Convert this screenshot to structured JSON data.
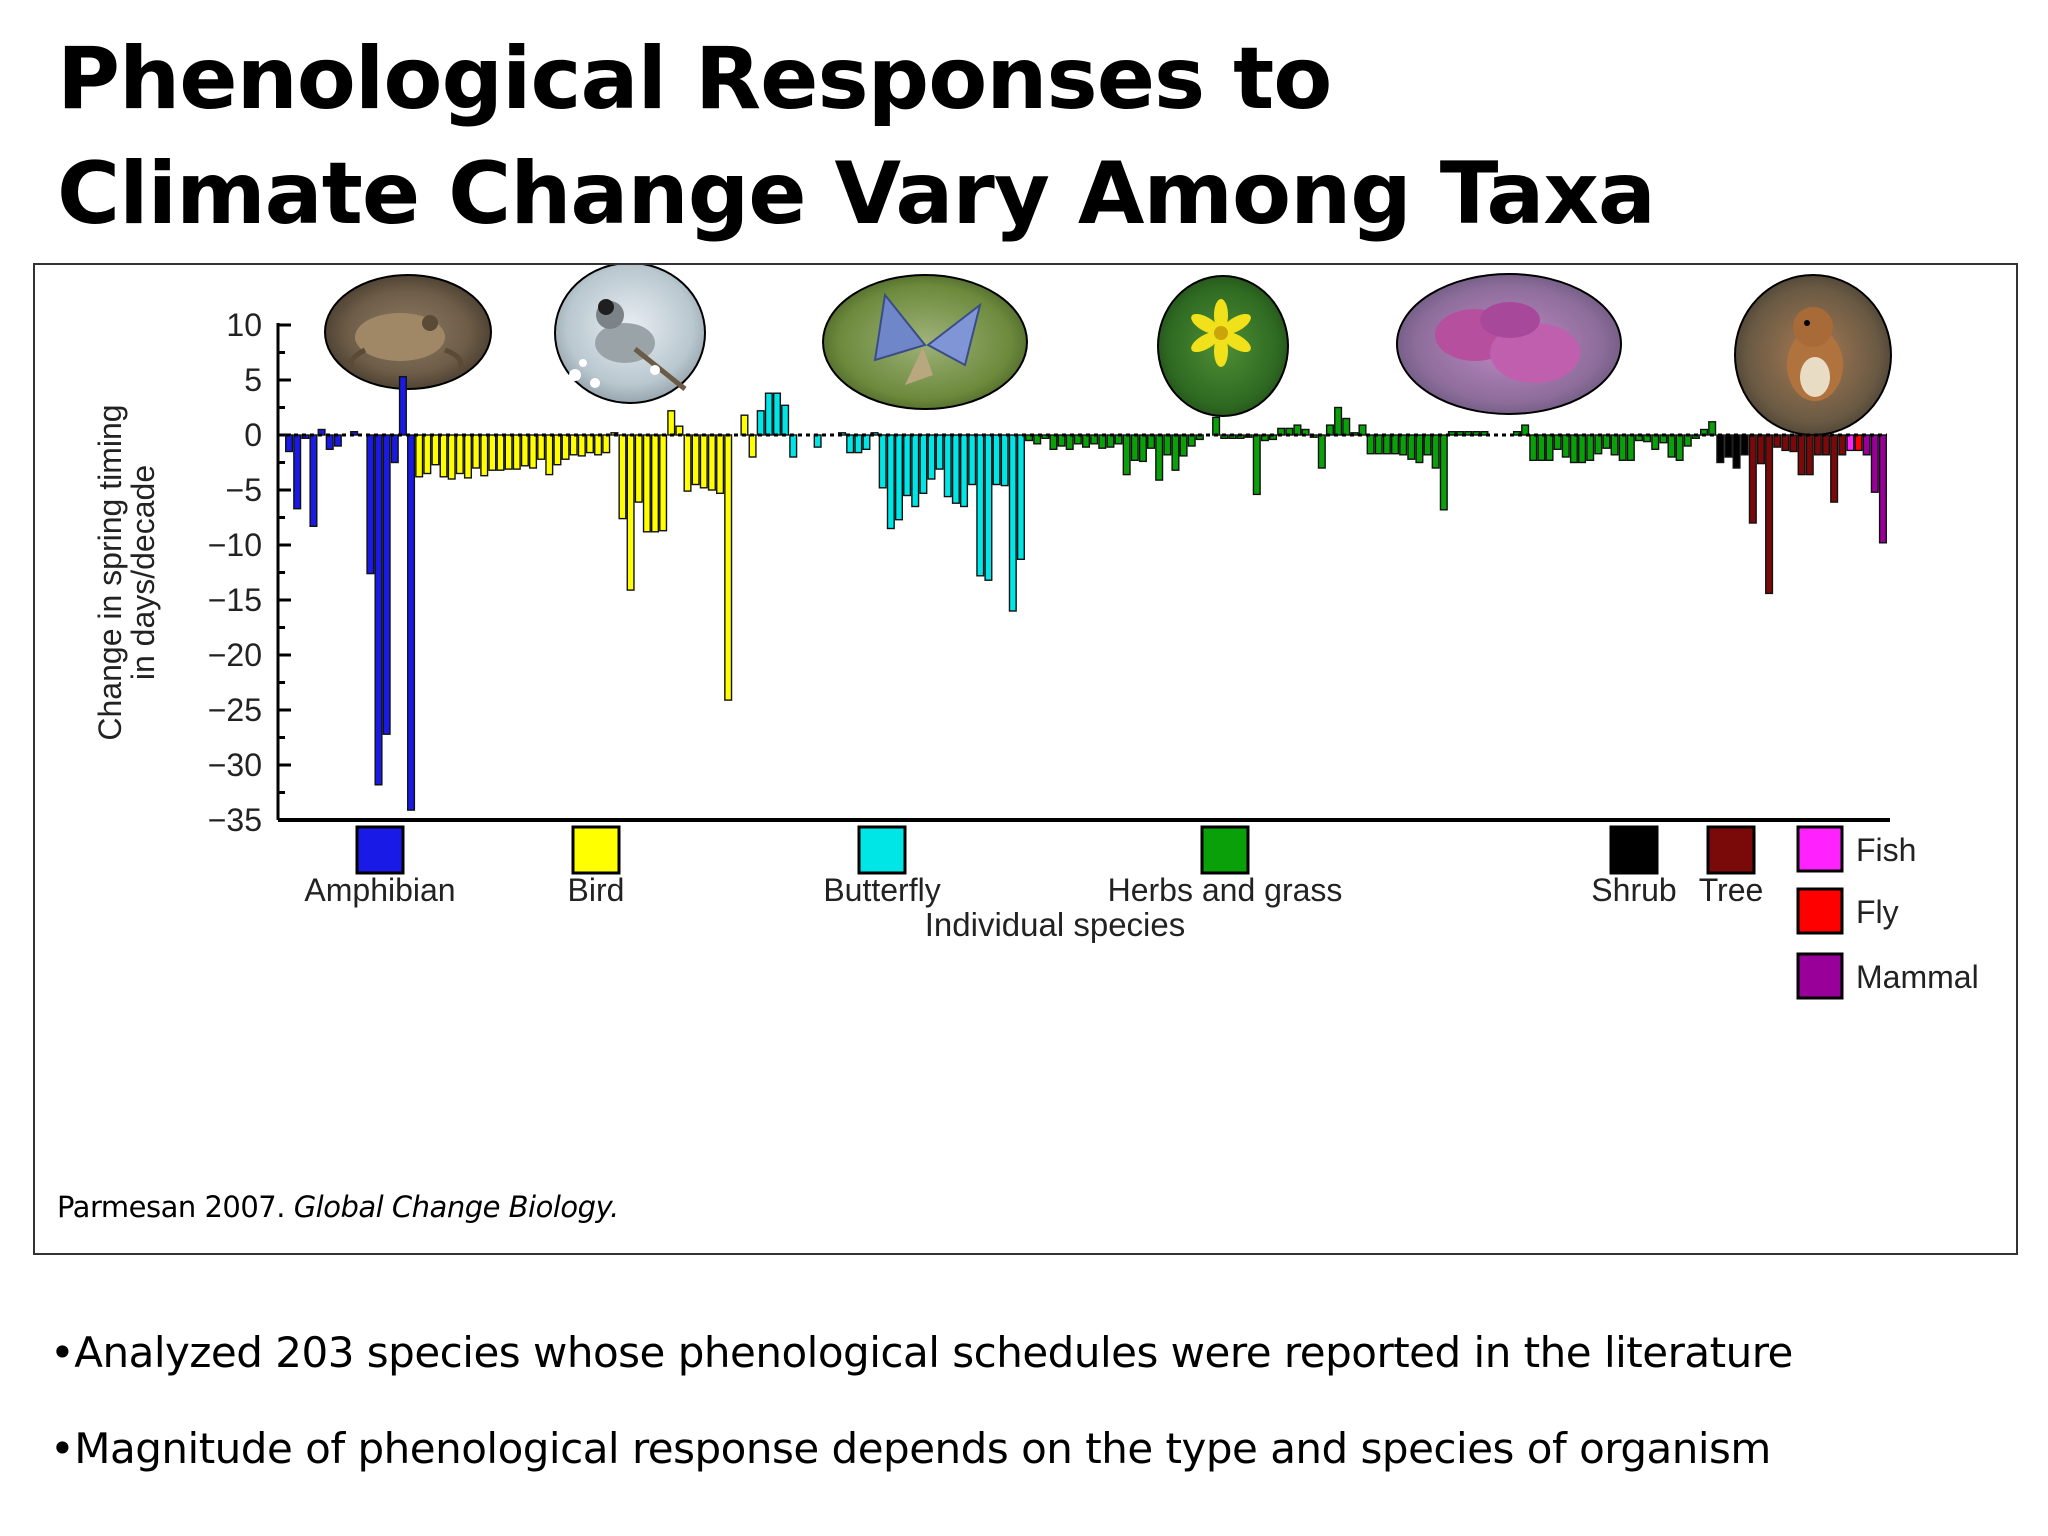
{
  "slide": {
    "title_line1": "Phenological Responses to",
    "title_line2": "Climate Change Vary Among Taxa",
    "citation_plain": "Parmesan 2007. ",
    "citation_italic": "Global Change Biology.",
    "bullets": [
      "•Analyzed 203 species whose phenological schedules were reported in the literature",
      "•Magnitude of phenological response depends on the type and species of organism"
    ]
  },
  "photos": [
    "frog-photo",
    "bird-photo",
    "butterfly-photo",
    "yellow-flower-photo",
    "lilac-flowers-photo",
    "squirrel-photo"
  ],
  "chart_data": {
    "type": "bar",
    "xlabel": "Individual species",
    "ylabel": "Change in spring timing in days/decade",
    "ylabel_lines": [
      "Change in spring timing",
      "in days/decade"
    ],
    "ylim": [
      -35,
      10
    ],
    "yticks": [
      10,
      5,
      0,
      -5,
      -10,
      -15,
      -20,
      -25,
      -30,
      -35
    ],
    "reference_line": 0,
    "series": [
      {
        "name": "Amphibian",
        "color": "#1a1ae6",
        "values": [
          -1.5,
          -6.7,
          -0.3,
          -8.3,
          0.5,
          -1.3,
          -1.0,
          0,
          0.3,
          0,
          -12.6,
          -31.8,
          -27.2,
          -2.5,
          5.3,
          -34.1
        ]
      },
      {
        "name": "Bird",
        "color": "#ffff00",
        "values": [
          -3.8,
          -3.5,
          -2.7,
          -3.8,
          -4.0,
          -3.5,
          -3.9,
          -3.0,
          -3.7,
          -3.2,
          -3.2,
          -3.1,
          -3.1,
          -2.8,
          -3.0,
          -2.2,
          -3.6,
          -2.7,
          -2.2,
          -1.8,
          -1.9,
          -1.6,
          -1.8,
          -1.6,
          0.2,
          -7.6,
          -14.1,
          -6.1,
          -8.8,
          -8.8,
          -8.7,
          2.2,
          0.8,
          -5.1,
          -4.5,
          -4.8,
          -5.0,
          -5.3,
          -24.1,
          0,
          1.8,
          -2.0
        ]
      },
      {
        "name": "Butterfly",
        "color": "#00e5e5",
        "values": [
          2.2,
          3.8,
          3.8,
          2.7,
          -2.0,
          0,
          0,
          -1.1,
          0,
          0,
          0.2,
          -1.6,
          -1.6,
          -1.3,
          0.2,
          -4.8,
          -8.5,
          -7.7,
          -5.5,
          -6.5,
          -5.3,
          -4.0,
          -3.1,
          -5.6,
          -6.2,
          -6.5,
          -4.5,
          -12.8,
          -13.2,
          -4.5,
          -4.6,
          -16.0,
          -11.3
        ]
      },
      {
        "name": "Herbs and grass",
        "color": "#0aa00a",
        "values": [
          -0.5,
          -0.8,
          -0.3,
          -1.3,
          -1.0,
          -1.3,
          -0.8,
          -1.1,
          -0.8,
          -1.2,
          -1.1,
          -0.8,
          -3.6,
          -2.3,
          -2.4,
          -1.2,
          -4.1,
          -1.8,
          -3.2,
          -1.9,
          -1.0,
          -0.4,
          0,
          1.6,
          -0.3,
          -0.3,
          -0.3,
          -0.2,
          -5.4,
          -0.5,
          -0.4,
          0.6,
          0.6,
          0.9,
          0.5,
          -0.2,
          -3.0,
          0.9,
          2.5,
          1.5,
          0.2,
          0.9,
          -1.7,
          -1.7,
          -1.7,
          -1.7,
          -1.8,
          -2.2,
          -2.5,
          -1.8,
          -3.0,
          -6.8,
          0.3,
          0.3,
          0.3,
          0.3,
          0.3,
          0,
          0,
          0,
          0.3,
          0.9,
          -2.3,
          -2.3,
          -2.3,
          -1.3,
          -2.0,
          -2.5,
          -2.5,
          -2.3,
          -1.7,
          -1.2,
          -1.8,
          -2.3,
          -2.3,
          -0.5,
          -0.6,
          -1.3,
          -0.7,
          -2.0,
          -2.3,
          -1.0,
          -0.3,
          0.5,
          1.2
        ]
      },
      {
        "name": "Shrub",
        "color": "#000000",
        "values": [
          -2.5,
          -2.0,
          -3.0,
          -1.8
        ]
      },
      {
        "name": "Tree",
        "color": "#7a0a0a",
        "values": [
          -8.0,
          -2.6,
          -14.4,
          -1.1,
          -1.4,
          -1.5,
          -3.6,
          -3.6,
          -1.8,
          -1.8,
          -6.1,
          -1.8
        ]
      },
      {
        "name": "Fish",
        "color": "#ff22ff",
        "values": [
          -1.4
        ]
      },
      {
        "name": "Fly",
        "color": "#ff0000",
        "values": [
          -1.4
        ]
      },
      {
        "name": "Mammal",
        "color": "#990099",
        "values": [
          -1.8,
          -5.2,
          -9.8
        ]
      }
    ],
    "legend": {
      "row_items": [
        "Amphibian",
        "Bird",
        "Butterfly",
        "Herbs and grass",
        "Shrub",
        "Tree"
      ],
      "stack_items": [
        "Fish",
        "Fly",
        "Mammal"
      ],
      "placement": "below"
    }
  }
}
